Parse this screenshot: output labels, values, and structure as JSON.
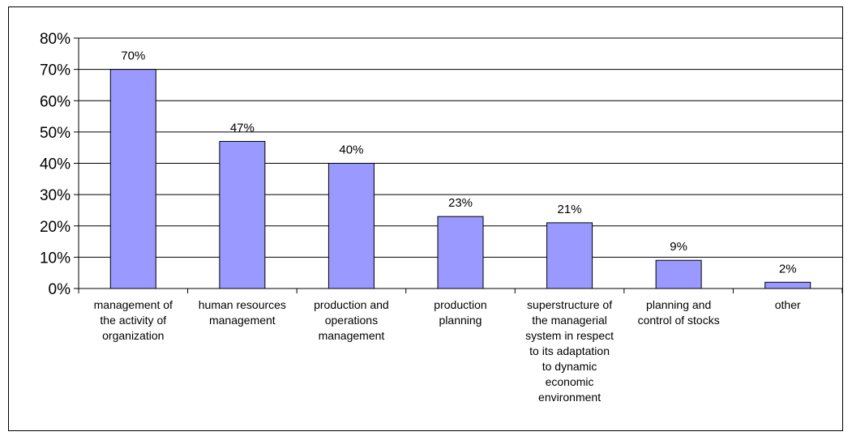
{
  "chart_data": {
    "type": "bar",
    "title": "",
    "xlabel": "",
    "ylabel": "",
    "categories": [
      [
        "management of",
        "the activity of",
        "organization"
      ],
      [
        "human resources",
        "management"
      ],
      [
        "production and",
        "operations",
        "management"
      ],
      [
        "production",
        "planning"
      ],
      [
        "superstructure of",
        "the managerial",
        "system in respect",
        "to its adaptation",
        "to dynamic",
        "economic",
        "environment"
      ],
      [
        "planning and",
        "control of stocks"
      ],
      [
        "other"
      ]
    ],
    "values": [
      70,
      47,
      40,
      23,
      21,
      9,
      2
    ],
    "data_labels": [
      "70%",
      "47%",
      "40%",
      "23%",
      "21%",
      "9%",
      "2%"
    ],
    "yticks": [
      0,
      10,
      20,
      30,
      40,
      50,
      60,
      70,
      80
    ],
    "ytick_labels": [
      "0%",
      "10%",
      "20%",
      "30%",
      "40%",
      "50%",
      "60%",
      "70%",
      "80%"
    ],
    "ylim": [
      0,
      80
    ],
    "grid": true,
    "legend": "none",
    "colors": {
      "bar": "#9999ff",
      "bar_stroke": "#000000",
      "grid": "#000000"
    }
  }
}
